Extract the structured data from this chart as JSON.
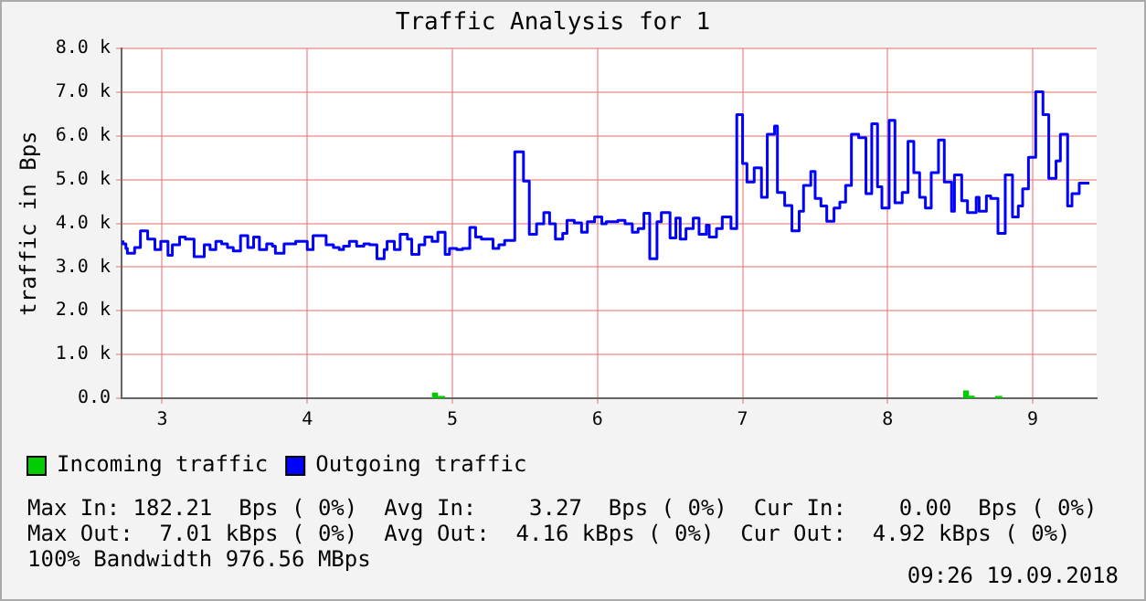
{
  "chart_data": {
    "type": "step",
    "title": "Traffic Analysis for 1",
    "ylabel": "traffic in Bps",
    "xlim": [
      2.72,
      9.44
    ],
    "xticks": [
      3,
      4,
      5,
      6,
      7,
      8,
      9
    ],
    "ylim": [
      0,
      8000
    ],
    "yticks": [
      {
        "value": 0,
        "label": "0.0"
      },
      {
        "value": 1000,
        "label": "1.0 k"
      },
      {
        "value": 2000,
        "label": "2.0 k"
      },
      {
        "value": 3000,
        "label": "3.0 k"
      },
      {
        "value": 4000,
        "label": "4.0 k"
      },
      {
        "value": 5000,
        "label": "5.0 k"
      },
      {
        "value": 6000,
        "label": "6.0 k"
      },
      {
        "value": 7000,
        "label": "7.0 k"
      },
      {
        "value": 8000,
        "label": "8.0 k"
      }
    ],
    "grid": true,
    "legend": "bottom",
    "marker": "none",
    "series": [
      {
        "name": "Incoming traffic",
        "type": "area",
        "color": "#00cc00",
        "x": [
          2.73,
          4.86,
          4.9,
          4.95,
          8.52,
          8.56,
          8.6,
          8.74,
          8.79,
          9.39
        ],
        "values": [
          0,
          130,
          50,
          0,
          180,
          60,
          0,
          50,
          0,
          0
        ]
      },
      {
        "name": "Outgoing traffic",
        "type": "step",
        "color": "#0000ff",
        "x": [
          2.73,
          2.75,
          2.76,
          2.81,
          2.85,
          2.9,
          2.95,
          2.99,
          3.04,
          3.07,
          3.12,
          3.16,
          3.22,
          3.29,
          3.33,
          3.37,
          3.41,
          3.45,
          3.49,
          3.54,
          3.59,
          3.63,
          3.67,
          3.72,
          3.76,
          3.78,
          3.84,
          3.92,
          4.0,
          4.04,
          4.13,
          4.18,
          4.22,
          4.25,
          4.29,
          4.34,
          4.39,
          4.43,
          4.48,
          4.53,
          4.55,
          4.6,
          4.64,
          4.69,
          4.72,
          4.77,
          4.81,
          4.86,
          4.9,
          4.95,
          4.98,
          5.03,
          5.07,
          5.12,
          5.16,
          5.2,
          5.28,
          5.32,
          5.36,
          5.43,
          5.49,
          5.53,
          5.58,
          5.63,
          5.67,
          5.71,
          5.76,
          5.79,
          5.84,
          5.89,
          5.93,
          5.98,
          6.03,
          6.06,
          6.14,
          6.19,
          6.24,
          6.28,
          6.32,
          6.36,
          6.41,
          6.44,
          6.5,
          6.54,
          6.57,
          6.61,
          6.66,
          6.7,
          6.75,
          6.77,
          6.82,
          6.86,
          6.92,
          6.96,
          7.0,
          7.03,
          7.08,
          7.13,
          7.17,
          7.22,
          7.24,
          7.29,
          7.34,
          7.39,
          7.42,
          7.47,
          7.5,
          7.54,
          7.58,
          7.63,
          7.67,
          7.71,
          7.75,
          7.8,
          7.85,
          7.89,
          7.93,
          7.96,
          8.01,
          8.05,
          8.1,
          8.14,
          8.18,
          8.22,
          8.26,
          8.3,
          8.35,
          8.39,
          8.44,
          8.46,
          8.51,
          8.55,
          8.61,
          8.63,
          8.68,
          8.71,
          8.76,
          8.81,
          8.86,
          8.9,
          8.93,
          8.97,
          9.02,
          9.07,
          9.11,
          9.16,
          9.19,
          9.24,
          9.27,
          9.32,
          9.35,
          9.39
        ],
        "values": [
          3610,
          3530,
          3430,
          3320,
          3450,
          3830,
          3640,
          3400,
          3590,
          3270,
          3510,
          3690,
          3640,
          3240,
          3510,
          3400,
          3590,
          3530,
          3450,
          3370,
          3720,
          3450,
          3690,
          3400,
          3530,
          3480,
          3320,
          3530,
          3590,
          3400,
          3720,
          3510,
          3450,
          3400,
          3480,
          3590,
          3480,
          3530,
          3510,
          3190,
          3400,
          3590,
          3400,
          3750,
          3640,
          3290,
          3510,
          3690,
          3590,
          3800,
          3290,
          3430,
          3400,
          3430,
          3910,
          3690,
          3640,
          3430,
          3510,
          3610,
          5640,
          4970,
          3750,
          3990,
          4250,
          3990,
          3640,
          3770,
          4070,
          4010,
          3800,
          4040,
          4150,
          3990,
          4040,
          4070,
          3990,
          3800,
          3880,
          4230,
          3190,
          4040,
          4250,
          3670,
          4120,
          3640,
          3880,
          4120,
          3750,
          3960,
          3690,
          3880,
          4150,
          3880,
          6490,
          5370,
          4950,
          5270,
          4600,
          6040,
          6230,
          4710,
          4410,
          3830,
          4280,
          4870,
          5190,
          4570,
          4400,
          4050,
          4350,
          4490,
          4870,
          6040,
          5960,
          4680,
          6280,
          4840,
          4350,
          6360,
          4470,
          4710,
          5880,
          5160,
          4600,
          4350,
          5160,
          5910,
          4950,
          4280,
          5110,
          4520,
          4250,
          4600,
          4280,
          4630,
          4570,
          3770,
          5110,
          4150,
          4400,
          4790,
          5510,
          7010,
          6490,
          5030,
          5430,
          6040,
          4400,
          4680,
          4920,
          4920
        ]
      }
    ],
    "annotations": [
      "Max In: 182.21  Bps ( 0%)  Avg In:    3.27  Bps ( 0%)  Cur In:    0.00  Bps ( 0%)",
      "Max Out:  7.01 kBps ( 0%)  Avg Out:  4.16 kBps ( 0%)  Cur Out:  4.92 kBps ( 0%)",
      "100% Bandwidth 976.56 MBps",
      "09:26 19.09.2018"
    ]
  }
}
